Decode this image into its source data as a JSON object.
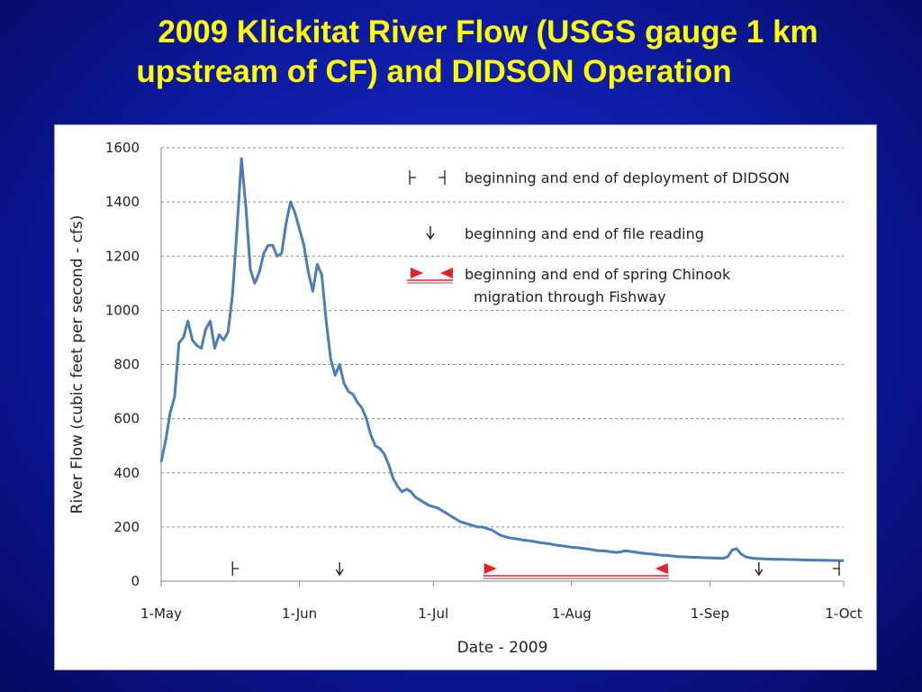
{
  "title": {
    "line1": "2009 Klickitat River Flow (USGS gauge 1 km",
    "line2": "upstream of CF) and DIDSON Operation"
  },
  "colors": {
    "background": "#0c1aa0",
    "title": "#ffff00",
    "series": "#4a7eb5",
    "marker_red": "#e8202a"
  },
  "chart_data": {
    "type": "line",
    "xlabel": "Date - 2009",
    "ylabel": "River Flow (cubic feet per second - cfs)",
    "ylim": [
      0,
      1600
    ],
    "xlim": [
      "2009-05-01",
      "2009-10-01"
    ],
    "grid": "horizontal dashed",
    "x_ticks": [
      {
        "date": "2009-05-01",
        "label": "1-May"
      },
      {
        "date": "2009-06-01",
        "label": "1-Jun"
      },
      {
        "date": "2009-07-01",
        "label": "1-Jul"
      },
      {
        "date": "2009-08-01",
        "label": "1-Aug"
      },
      {
        "date": "2009-09-01",
        "label": "1-Sep"
      },
      {
        "date": "2009-10-01",
        "label": "1-Oct"
      }
    ],
    "y_ticks": [
      0,
      200,
      400,
      600,
      800,
      1000,
      1200,
      1400,
      1600
    ],
    "series": [
      {
        "points": [
          [
            "2009-05-01",
            440
          ],
          [
            "2009-05-02",
            520
          ],
          [
            "2009-05-03",
            620
          ],
          [
            "2009-05-04",
            680
          ],
          [
            "2009-05-05",
            880
          ],
          [
            "2009-05-06",
            900
          ],
          [
            "2009-05-07",
            960
          ],
          [
            "2009-05-08",
            890
          ],
          [
            "2009-05-09",
            870
          ],
          [
            "2009-05-10",
            860
          ],
          [
            "2009-05-11",
            930
          ],
          [
            "2009-05-12",
            960
          ],
          [
            "2009-05-13",
            860
          ],
          [
            "2009-05-14",
            910
          ],
          [
            "2009-05-15",
            890
          ],
          [
            "2009-05-16",
            920
          ],
          [
            "2009-05-17",
            1060
          ],
          [
            "2009-05-18",
            1300
          ],
          [
            "2009-05-19",
            1560
          ],
          [
            "2009-05-20",
            1380
          ],
          [
            "2009-05-21",
            1150
          ],
          [
            "2009-05-22",
            1100
          ],
          [
            "2009-05-23",
            1140
          ],
          [
            "2009-05-24",
            1210
          ],
          [
            "2009-05-25",
            1240
          ],
          [
            "2009-05-26",
            1240
          ],
          [
            "2009-05-27",
            1200
          ],
          [
            "2009-05-28",
            1210
          ],
          [
            "2009-05-29",
            1320
          ],
          [
            "2009-05-30",
            1400
          ],
          [
            "2009-05-31",
            1360
          ],
          [
            "2009-06-01",
            1300
          ],
          [
            "2009-06-02",
            1240
          ],
          [
            "2009-06-03",
            1140
          ],
          [
            "2009-06-04",
            1070
          ],
          [
            "2009-06-05",
            1170
          ],
          [
            "2009-06-06",
            1130
          ],
          [
            "2009-06-07",
            960
          ],
          [
            "2009-06-08",
            820
          ],
          [
            "2009-06-09",
            760
          ],
          [
            "2009-06-10",
            800
          ],
          [
            "2009-06-11",
            730
          ],
          [
            "2009-06-12",
            700
          ],
          [
            "2009-06-13",
            690
          ],
          [
            "2009-06-14",
            660
          ],
          [
            "2009-06-15",
            640
          ],
          [
            "2009-06-16",
            600
          ],
          [
            "2009-06-17",
            540
          ],
          [
            "2009-06-18",
            500
          ],
          [
            "2009-06-19",
            490
          ],
          [
            "2009-06-20",
            470
          ],
          [
            "2009-06-21",
            430
          ],
          [
            "2009-06-22",
            380
          ],
          [
            "2009-06-23",
            350
          ],
          [
            "2009-06-24",
            330
          ],
          [
            "2009-06-25",
            340
          ],
          [
            "2009-06-26",
            330
          ],
          [
            "2009-06-27",
            310
          ],
          [
            "2009-06-28",
            300
          ],
          [
            "2009-06-29",
            290
          ],
          [
            "2009-06-30",
            280
          ],
          [
            "2009-07-01",
            275
          ],
          [
            "2009-07-02",
            270
          ],
          [
            "2009-07-03",
            260
          ],
          [
            "2009-07-04",
            250
          ],
          [
            "2009-07-05",
            240
          ],
          [
            "2009-07-06",
            230
          ],
          [
            "2009-07-07",
            220
          ],
          [
            "2009-07-08",
            215
          ],
          [
            "2009-07-09",
            210
          ],
          [
            "2009-07-10",
            205
          ],
          [
            "2009-07-11",
            200
          ],
          [
            "2009-07-12",
            200
          ],
          [
            "2009-07-13",
            195
          ],
          [
            "2009-07-14",
            190
          ],
          [
            "2009-07-15",
            180
          ],
          [
            "2009-07-16",
            170
          ],
          [
            "2009-07-17",
            165
          ],
          [
            "2009-07-18",
            160
          ],
          [
            "2009-07-19",
            158
          ],
          [
            "2009-07-20",
            155
          ],
          [
            "2009-07-21",
            152
          ],
          [
            "2009-07-22",
            150
          ],
          [
            "2009-07-23",
            148
          ],
          [
            "2009-07-24",
            145
          ],
          [
            "2009-07-25",
            142
          ],
          [
            "2009-07-26",
            140
          ],
          [
            "2009-07-27",
            138
          ],
          [
            "2009-07-28",
            135
          ],
          [
            "2009-07-29",
            132
          ],
          [
            "2009-07-30",
            130
          ],
          [
            "2009-07-31",
            128
          ],
          [
            "2009-08-01",
            125
          ],
          [
            "2009-08-02",
            124
          ],
          [
            "2009-08-03",
            122
          ],
          [
            "2009-08-04",
            120
          ],
          [
            "2009-08-05",
            118
          ],
          [
            "2009-08-06",
            115
          ],
          [
            "2009-08-07",
            112
          ],
          [
            "2009-08-08",
            112
          ],
          [
            "2009-08-09",
            110
          ],
          [
            "2009-08-10",
            108
          ],
          [
            "2009-08-11",
            106
          ],
          [
            "2009-08-12",
            108
          ],
          [
            "2009-08-13",
            112
          ],
          [
            "2009-08-14",
            110
          ],
          [
            "2009-08-15",
            108
          ],
          [
            "2009-08-16",
            105
          ],
          [
            "2009-08-17",
            103
          ],
          [
            "2009-08-18",
            101
          ],
          [
            "2009-08-19",
            100
          ],
          [
            "2009-08-20",
            98
          ],
          [
            "2009-08-21",
            96
          ],
          [
            "2009-08-22",
            95
          ],
          [
            "2009-08-23",
            94
          ],
          [
            "2009-08-24",
            92
          ],
          [
            "2009-08-25",
            90
          ],
          [
            "2009-08-26",
            90
          ],
          [
            "2009-08-27",
            89
          ],
          [
            "2009-08-28",
            88
          ],
          [
            "2009-08-29",
            88
          ],
          [
            "2009-08-30",
            87
          ],
          [
            "2009-08-31",
            86
          ],
          [
            "2009-09-01",
            86
          ],
          [
            "2009-09-02",
            85
          ],
          [
            "2009-09-03",
            85
          ],
          [
            "2009-09-04",
            84
          ],
          [
            "2009-09-05",
            90
          ],
          [
            "2009-09-06",
            115
          ],
          [
            "2009-09-07",
            120
          ],
          [
            "2009-09-08",
            100
          ],
          [
            "2009-09-09",
            90
          ],
          [
            "2009-09-10",
            86
          ],
          [
            "2009-09-11",
            84
          ],
          [
            "2009-09-12",
            83
          ],
          [
            "2009-09-13",
            82
          ],
          [
            "2009-09-15",
            81
          ],
          [
            "2009-09-18",
            80
          ],
          [
            "2009-09-21",
            79
          ],
          [
            "2009-09-24",
            78
          ],
          [
            "2009-09-27",
            77
          ],
          [
            "2009-10-01",
            76
          ]
        ]
      }
    ],
    "annotations": {
      "deployment": {
        "label": "beginning and end of deployment of DIDSON",
        "begin": "2009-05-17",
        "end": "2009-09-30"
      },
      "file_reading": {
        "label": "beginning and end of file reading",
        "begin": "2009-06-10",
        "end": "2009-09-12"
      },
      "chinook_migration": {
        "label_line1": "beginning and end of spring Chinook",
        "label_line2": "migration through Fishway",
        "begin": "2009-07-13",
        "end": "2009-08-22"
      }
    }
  }
}
